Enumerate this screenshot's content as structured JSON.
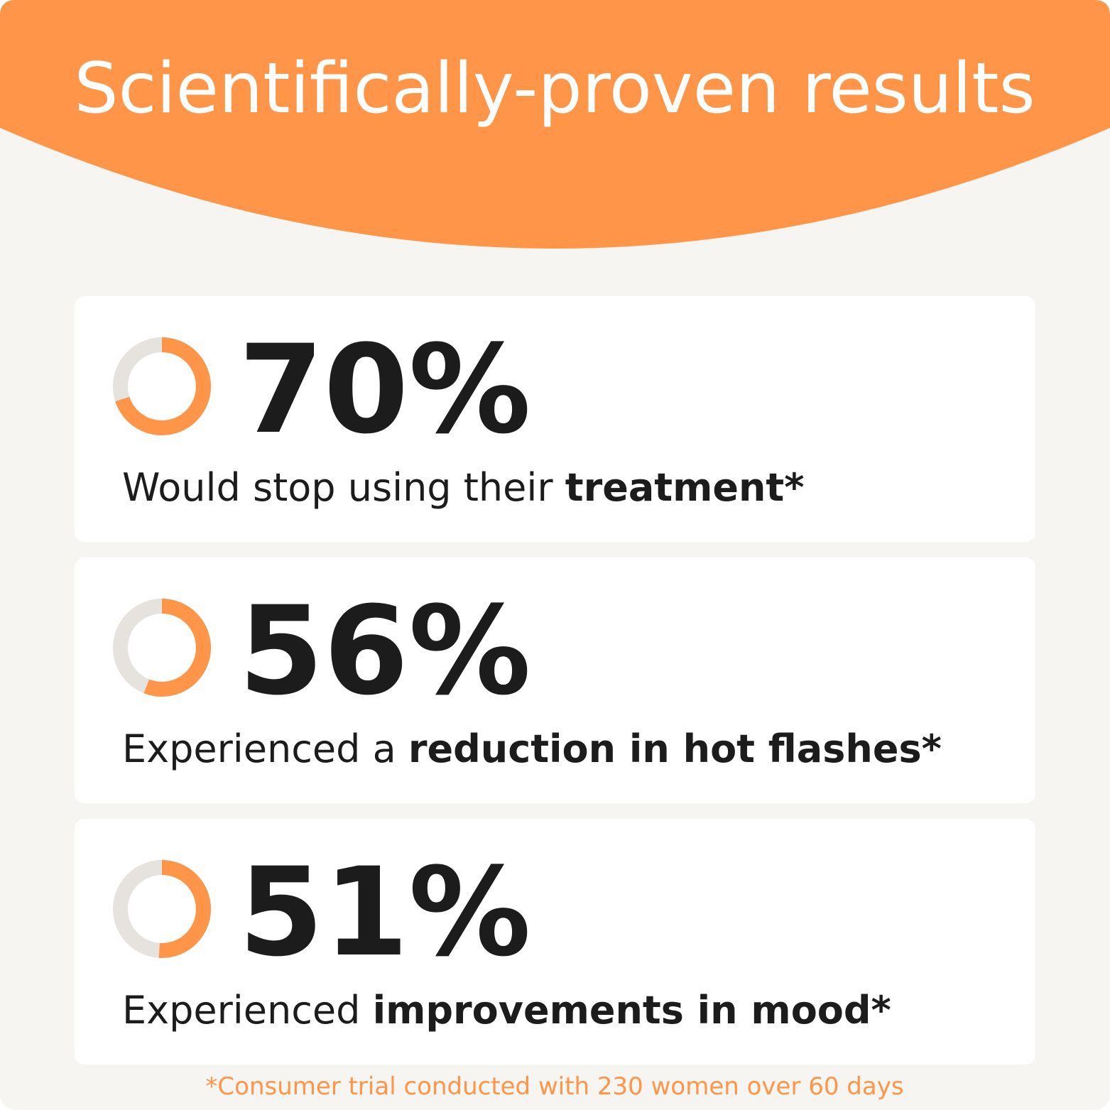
{
  "header": {
    "title": "Scientifically-proven results"
  },
  "stats": [
    {
      "value": 70,
      "value_label": "70%",
      "text": "Would stop using their ",
      "bold": "treatment",
      "suffix": "*"
    },
    {
      "value": 56,
      "value_label": "56%",
      "text": "Experienced a ",
      "bold": "reduction in hot flashes",
      "suffix": "*"
    },
    {
      "value": 51,
      "value_label": "51%",
      "text": "Experienced ",
      "bold": "improvements in mood",
      "suffix": "*"
    }
  ],
  "footnote": "*Consumer trial conducted with 230 women over 60 days"
}
